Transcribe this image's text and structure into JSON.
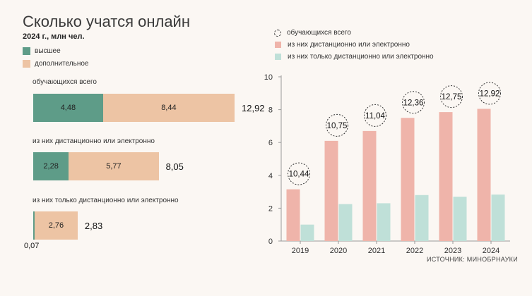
{
  "title": "Сколько учатся онлайн",
  "subtitle": "2024 г., млн чел.",
  "colors": {
    "higher": "#5e9c88",
    "additional": "#edc4a4",
    "remote": "#efb4aa",
    "remote_only": "#bfe0d8"
  },
  "left_legend": [
    {
      "label": "высшее",
      "color": "#5e9c88"
    },
    {
      "label": "дополнительное",
      "color": "#edc4a4"
    }
  ],
  "right_legend": [
    {
      "label": "обучающихся всего",
      "marker": "dashed-circle"
    },
    {
      "label": "из них дистанционно или электронно",
      "color": "#efb4aa"
    },
    {
      "label": "из них только дистанционно или электронно",
      "color": "#bfe0d8"
    }
  ],
  "source": "ИСТОЧНИК: МИНОБРНАУКИ",
  "chart_data": [
    {
      "type": "bar",
      "orientation": "horizontal-stacked",
      "title": "Сколько учатся онлайн",
      "subtitle": "2024 г., млн чел.",
      "categories": [
        "обучающихся всего",
        "из них дистанционно или электронно",
        "из них только дистанционно или электронно"
      ],
      "series": [
        {
          "name": "высшее",
          "values": [
            4.48,
            2.28,
            0.07
          ],
          "labels": [
            "4,48",
            "2,28",
            "0,07"
          ]
        },
        {
          "name": "дополнительное",
          "values": [
            8.44,
            5.77,
            2.76
          ],
          "labels": [
            "8,44",
            "5,77",
            "2,76"
          ]
        }
      ],
      "totals": [
        12.92,
        8.05,
        2.83
      ],
      "total_labels": [
        "12,92",
        "8,05",
        "2,83"
      ],
      "legend": "top-left"
    },
    {
      "type": "bar",
      "orientation": "vertical-grouped",
      "categories": [
        "2019",
        "2020",
        "2021",
        "2022",
        "2023",
        "2024"
      ],
      "series": [
        {
          "name": "из них дистанционно или электронно",
          "values": [
            3.15,
            6.1,
            6.7,
            7.5,
            7.85,
            8.05
          ]
        },
        {
          "name": "из них только дистанционно или электронно",
          "values": [
            1.0,
            2.25,
            2.3,
            2.8,
            2.7,
            2.83
          ]
        }
      ],
      "annotations": {
        "name": "обучающихся всего",
        "values": [
          10.44,
          10.75,
          11.04,
          12.36,
          12.75,
          12.92
        ],
        "labels": [
          "10,44",
          "10,75",
          "11,04",
          "12,36",
          "12,75",
          "12,92"
        ]
      },
      "yticks": [
        "0",
        "2",
        "4",
        "6",
        "8",
        "10"
      ],
      "ylim": [
        0,
        10
      ],
      "grid": false,
      "legend": "top-left"
    }
  ]
}
